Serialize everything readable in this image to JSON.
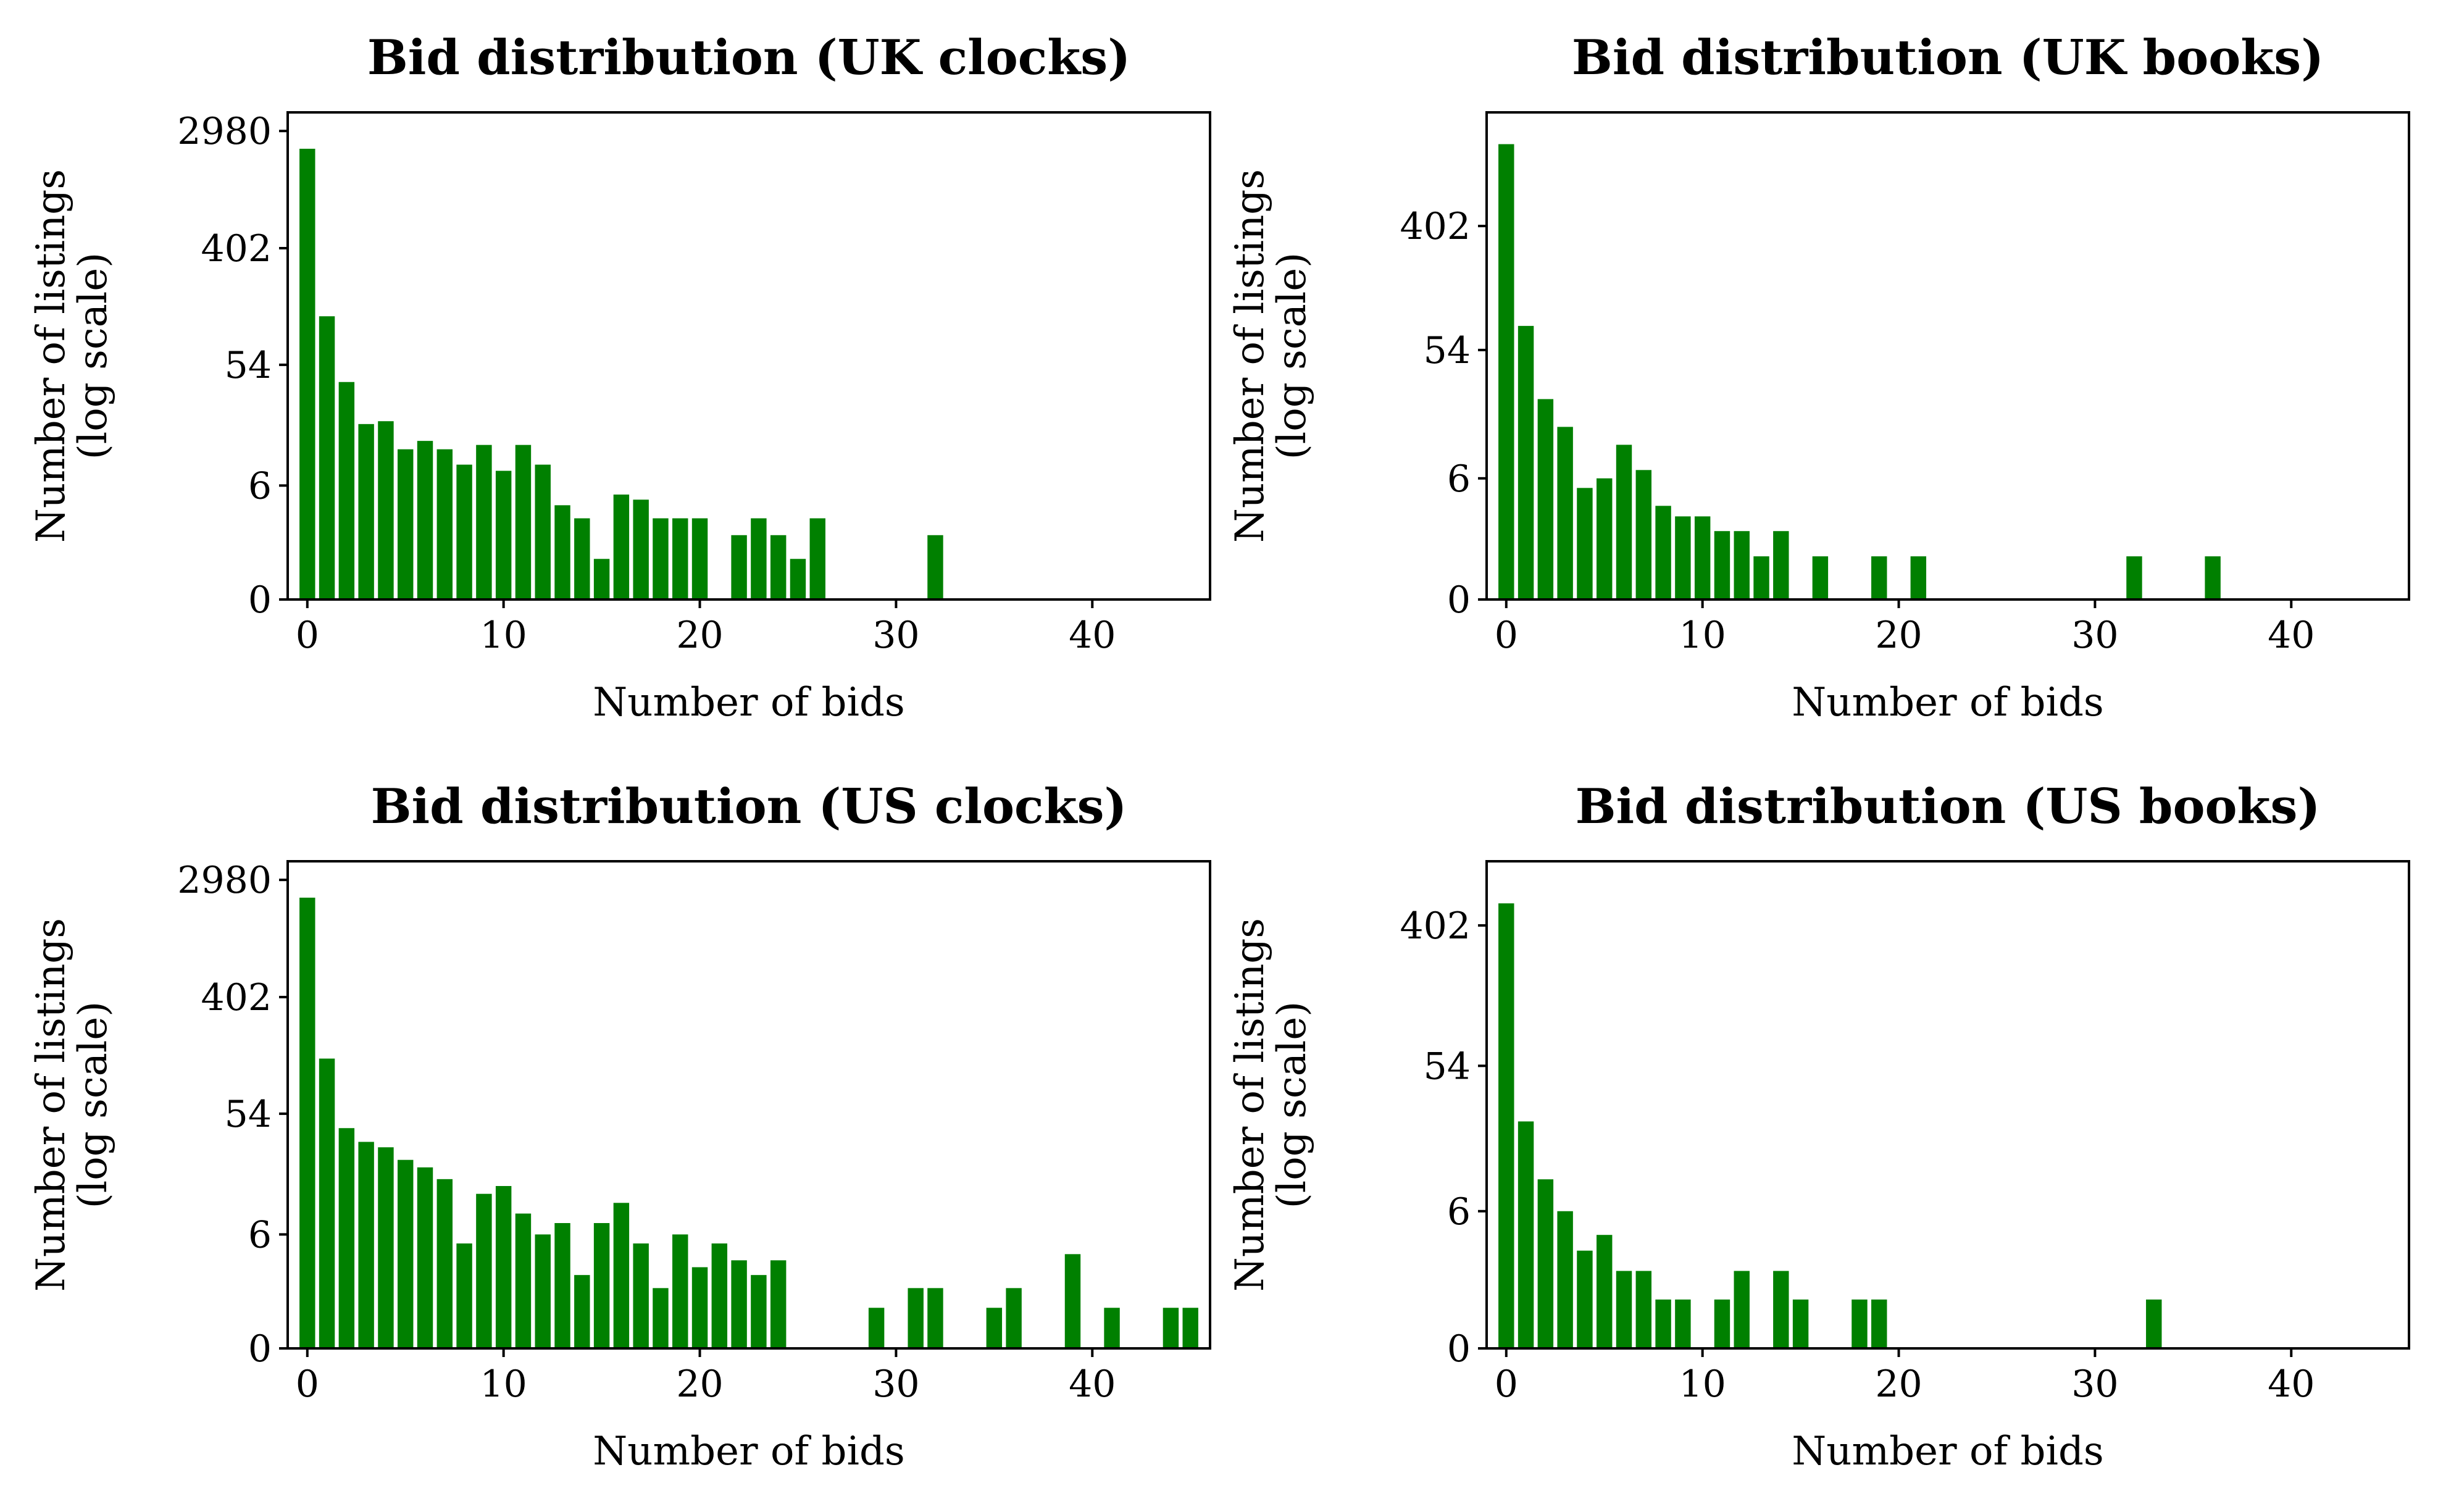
{
  "colors": {
    "bar": "#008000"
  },
  "chart_data": [
    {
      "type": "bar",
      "title": "Bid distribution (UK clocks)",
      "xlabel": "Number of bids",
      "ylabel": [
        "Number of listings",
        "(log scale)"
      ],
      "y_scale": "log(1+count)",
      "xlim": [
        -1,
        46
      ],
      "ylim": [
        0,
        4096
      ],
      "xticks": [
        0,
        10,
        20,
        30,
        40
      ],
      "yticks": [
        0,
        6,
        54,
        402,
        2980
      ],
      "x": [
        0,
        1,
        2,
        3,
        4,
        5,
        6,
        7,
        8,
        9,
        10,
        11,
        12,
        13,
        14,
        15,
        16,
        17,
        18,
        19,
        20,
        22,
        23,
        24,
        25,
        26,
        32
      ],
      "values": [
        2200,
        125,
        40,
        19,
        20,
        12,
        14,
        12,
        9,
        13,
        8,
        13,
        9,
        4,
        3,
        1,
        5,
        4.5,
        3,
        3,
        3,
        2,
        3,
        2,
        1,
        3,
        2
      ]
    },
    {
      "type": "bar",
      "title": "Bid distribution (UK books)",
      "xlabel": "Number of bids",
      "ylabel": [
        "Number of listings",
        "(log scale)"
      ],
      "y_scale": "log(1+count)",
      "xlim": [
        -1,
        46
      ],
      "ylim": [
        0,
        2500
      ],
      "xticks": [
        0,
        10,
        20,
        30,
        40
      ],
      "yticks": [
        0,
        6,
        54,
        402
      ],
      "x": [
        0,
        1,
        2,
        3,
        4,
        5,
        6,
        7,
        8,
        9,
        10,
        11,
        12,
        13,
        14,
        16,
        19,
        21,
        32,
        36
      ],
      "values": [
        1500,
        80,
        24,
        15,
        5,
        6,
        11,
        7,
        3.5,
        2.8,
        2.8,
        2,
        2,
        1,
        2,
        1,
        1,
        1,
        1,
        1
      ]
    },
    {
      "type": "bar",
      "title": "Bid distribution (US clocks)",
      "xlabel": "Number of bids",
      "ylabel": [
        "Number of listings",
        "(log scale)"
      ],
      "y_scale": "log(1+count)",
      "xlim": [
        -1,
        46
      ],
      "ylim": [
        0,
        4096
      ],
      "xticks": [
        0,
        10,
        20,
        30,
        40
      ],
      "yticks": [
        0,
        6,
        54,
        402,
        2980
      ],
      "x": [
        0,
        1,
        2,
        3,
        4,
        5,
        6,
        7,
        8,
        9,
        10,
        11,
        12,
        13,
        14,
        15,
        16,
        17,
        18,
        19,
        20,
        21,
        22,
        23,
        24,
        29,
        31,
        32,
        35,
        36,
        39,
        41,
        44,
        45
      ],
      "values": [
        2200,
        140,
        42,
        33,
        30,
        24,
        21,
        17,
        5,
        13,
        15,
        9,
        6,
        7.5,
        2.5,
        7.5,
        11,
        5,
        1.8,
        6,
        3,
        5,
        3.5,
        2.5,
        3.5,
        1,
        1.8,
        1.8,
        1,
        1.8,
        4,
        1,
        1,
        1
      ]
    },
    {
      "type": "bar",
      "title": "Bid distribution (US books)",
      "xlabel": "Number of bids",
      "ylabel": [
        "Number of listings",
        "(log scale)"
      ],
      "y_scale": "log(1+count)",
      "xlim": [
        -1,
        46
      ],
      "ylim": [
        0,
        1000
      ],
      "xticks": [
        0,
        10,
        20,
        30,
        40
      ],
      "yticks": [
        0,
        6,
        54,
        402
      ],
      "x": [
        0,
        1,
        2,
        3,
        4,
        5,
        6,
        7,
        8,
        9,
        11,
        12,
        14,
        15,
        18,
        19,
        33
      ],
      "values": [
        550,
        24,
        10,
        6,
        3,
        4,
        2,
        2,
        1,
        1,
        1,
        2,
        2,
        1,
        1,
        1,
        1
      ]
    }
  ]
}
